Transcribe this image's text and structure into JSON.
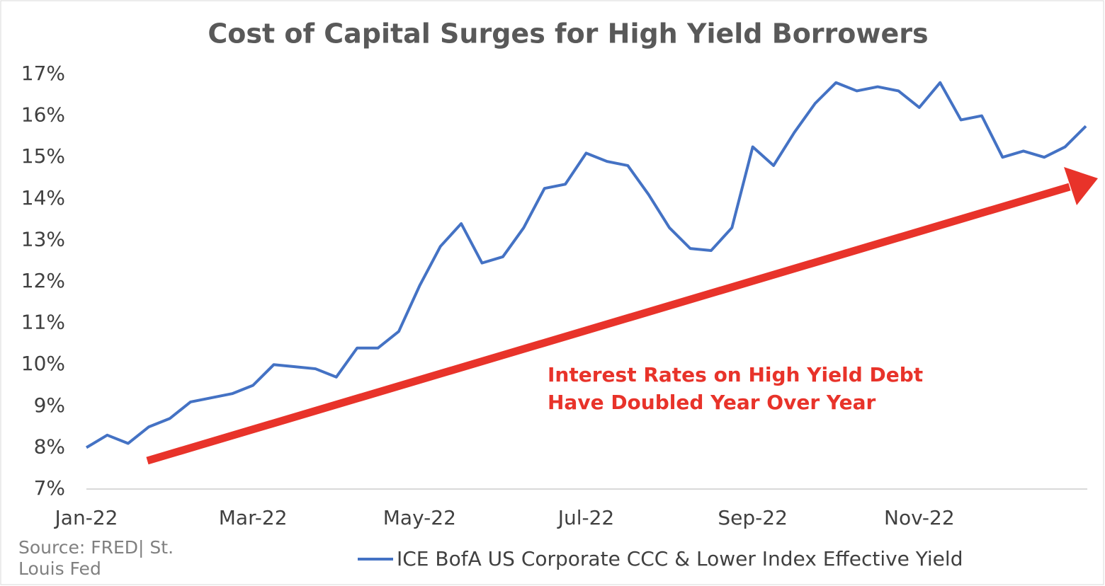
{
  "chart_data": {
    "type": "line",
    "title": "Cost of Capital Surges for High Yield Borrowers",
    "categories": [
      "Jan-22",
      null,
      null,
      null,
      null,
      null,
      null,
      null,
      "Mar-22",
      null,
      null,
      null,
      null,
      null,
      null,
      null,
      "May-22",
      null,
      null,
      null,
      null,
      null,
      null,
      null,
      "Jul-22",
      null,
      null,
      null,
      null,
      null,
      null,
      null,
      "Sep-22",
      null,
      null,
      null,
      null,
      null,
      null,
      null,
      "Nov-22",
      null,
      null,
      null,
      null,
      null,
      null,
      null,
      null
    ],
    "series": [
      {
        "name": "ICE BofA US Corporate CCC & Lower Index Effective Yield",
        "color": "#4472c4",
        "values": [
          8.0,
          8.3,
          8.1,
          8.5,
          8.7,
          9.1,
          9.2,
          9.3,
          9.5,
          10.0,
          9.95,
          9.9,
          9.7,
          10.4,
          10.4,
          10.8,
          11.9,
          12.85,
          13.4,
          12.45,
          12.6,
          13.3,
          14.25,
          14.35,
          15.1,
          14.9,
          14.8,
          14.1,
          13.3,
          12.8,
          12.75,
          13.3,
          15.25,
          14.8,
          15.6,
          16.3,
          16.8,
          16.6,
          16.7,
          16.6,
          16.2,
          16.8,
          15.9,
          16.0,
          15.0,
          15.15,
          15.0,
          15.25,
          15.75
        ]
      }
    ],
    "ylim": [
      7,
      17
    ],
    "yticks": [
      {
        "value": 7,
        "label": "7%"
      },
      {
        "value": 8,
        "label": "8%"
      },
      {
        "value": 9,
        "label": "9%"
      },
      {
        "value": 10,
        "label": "10%"
      },
      {
        "value": 11,
        "label": "11%"
      },
      {
        "value": 12,
        "label": "12%"
      },
      {
        "value": 13,
        "label": "13%"
      },
      {
        "value": 14,
        "label": "14%"
      },
      {
        "value": 15,
        "label": "15%"
      },
      {
        "value": 16,
        "label": "16%"
      },
      {
        "value": 17,
        "label": "17%"
      }
    ],
    "annotation": [
      "Interest Rates on High Yield Debt",
      "Have Doubled Year Over Year"
    ],
    "source": [
      "Source: FRED| St.",
      "Louis Fed"
    ],
    "grid": false
  }
}
